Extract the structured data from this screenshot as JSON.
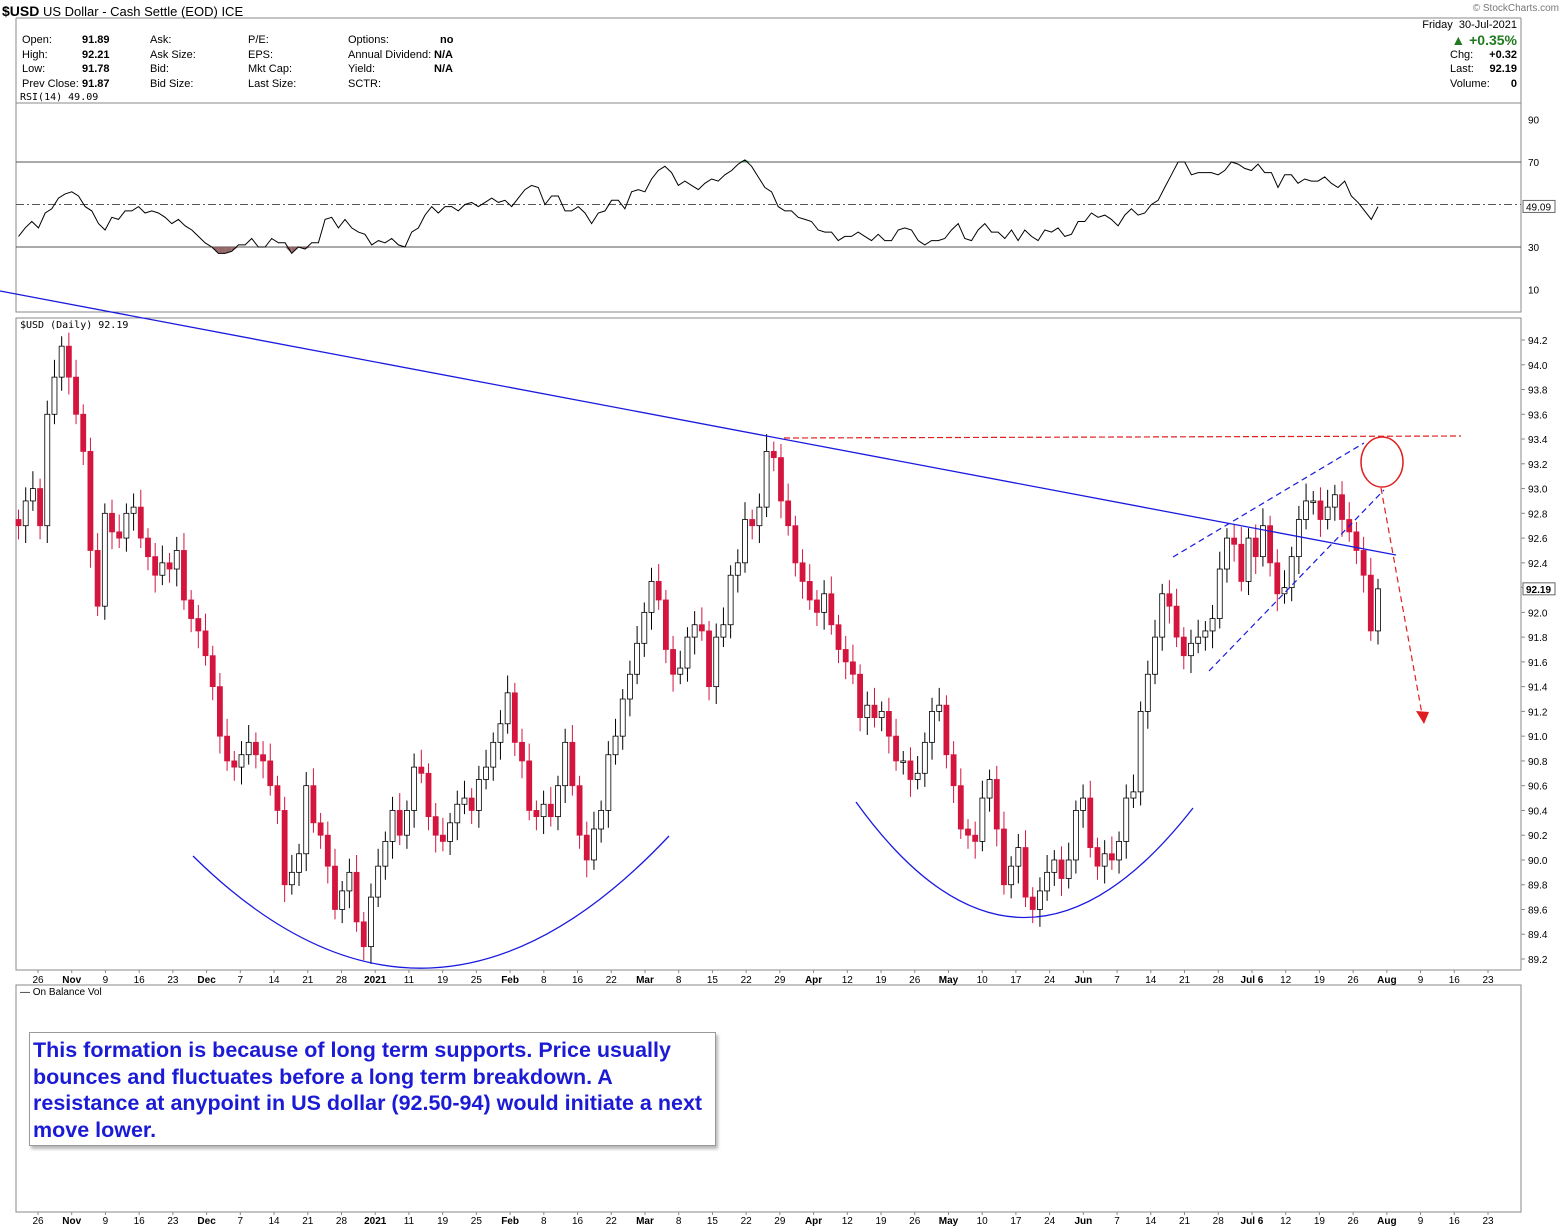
{
  "header": {
    "symbol": "$USD",
    "name": "US Dollar - Cash Settle (EOD)",
    "exchange": "ICE",
    "brand": "© StockCharts.com",
    "date_day": "Friday",
    "date": "30-Jul-2021",
    "change_pct": "▲ +0.35%"
  },
  "quote": {
    "open_label": "Open:",
    "open": "91.89",
    "high_label": "High:",
    "high": "92.21",
    "low_label": "Low:",
    "low": "91.78",
    "prev_label": "Prev Close:",
    "prev": "91.87",
    "ask_label": "Ask:",
    "asksize_label": "Ask Size:",
    "bid_label": "Bid:",
    "bidsize_label": "Bid Size:",
    "pe_label": "P/E:",
    "eps_label": "EPS:",
    "mktcap_label": "Mkt Cap:",
    "lastsize_label": "Last Size:",
    "options_label": "Options:",
    "options": "no",
    "dividend_label": "Annual Dividend:",
    "dividend": "N/A",
    "yield_label": "Yield:",
    "yield": "N/A",
    "sctr_label": "SCTR:",
    "chg_label": "Chg:",
    "chg": "+0.32",
    "last_label": "Last:",
    "last": "92.19",
    "volume_label": "Volume:",
    "volume": "0"
  },
  "colors": {
    "down": "#d4153d",
    "up": "#ffffff",
    "trend": "#1a1ae0",
    "resistance": "#e02020",
    "rsi_line": "#000000",
    "rsi_overbought_fill": "#2e8b57",
    "rsi_oversold_fill": "#8b5a5a"
  },
  "annotation": {
    "text": "This formation is because of long term supports. Price usually bounces and fluctuates before a long term breakdown. A resistance at anypoint in US dollar (92.50-94) would initiate a next move lower."
  },
  "chart_data": [
    {
      "type": "line",
      "title": "RSI(14) 49.09",
      "ylim": [
        0,
        100
      ],
      "yticks": [
        "90",
        "70",
        "30",
        "10"
      ],
      "reference_lines": [
        70,
        50,
        30
      ],
      "last_value": "49.09",
      "series": [
        {
          "values": [
            35,
            39,
            42,
            39,
            46,
            48,
            53,
            55,
            56,
            54,
            49,
            47,
            41,
            38,
            44,
            43,
            47,
            47,
            49,
            46,
            47,
            46,
            44,
            41,
            43,
            40,
            38,
            35,
            32,
            30,
            27,
            27,
            28,
            31,
            31,
            34,
            30,
            30,
            34,
            32,
            32,
            27,
            30,
            29,
            32,
            32,
            43,
            44,
            39,
            43,
            39,
            37,
            36,
            31,
            33,
            32,
            34,
            31,
            30,
            37,
            39,
            45,
            49,
            46,
            49,
            49,
            47,
            50,
            51,
            49,
            51,
            53,
            51,
            52,
            49,
            53,
            57,
            59,
            58,
            50,
            54,
            54,
            47,
            47,
            49,
            46,
            41,
            46,
            47,
            52,
            52,
            48,
            56,
            57,
            56,
            62,
            66,
            68,
            65,
            59,
            61,
            59,
            57,
            60,
            62,
            61,
            64,
            66,
            69,
            71,
            68,
            63,
            58,
            56,
            49,
            47,
            47,
            44,
            43,
            42,
            38,
            37,
            37,
            33,
            35,
            35,
            37,
            35,
            33,
            36,
            33,
            33,
            38,
            39,
            38,
            33,
            31,
            33,
            33,
            34,
            38,
            41,
            34,
            33,
            38,
            41,
            37,
            37,
            34,
            38,
            33,
            38,
            35,
            33,
            38,
            37,
            39,
            35,
            36,
            42,
            42,
            46,
            44,
            45,
            43,
            40,
            45,
            48,
            45,
            46,
            50,
            52,
            58,
            64,
            70,
            70,
            64,
            65,
            65,
            65,
            64,
            66,
            70,
            69,
            67,
            66,
            69,
            65,
            65,
            58,
            64,
            64,
            60,
            62,
            61,
            61,
            63,
            60,
            58,
            61,
            54,
            51,
            47,
            43,
            49
          ]
        }
      ]
    },
    {
      "type": "candlestick",
      "title": "$USD (Daily) 92.19",
      "ylim": [
        89.1,
        94.3
      ],
      "yticks": [
        "94.2",
        "94.0",
        "93.8",
        "93.6",
        "93.4",
        "93.2",
        "93.0",
        "92.8",
        "92.6",
        "92.4",
        "92.2",
        "92.0",
        "91.8",
        "91.6",
        "91.4",
        "91.2",
        "91.0",
        "90.8",
        "90.6",
        "90.4",
        "90.2",
        "90.0",
        "89.8",
        "89.6",
        "89.4",
        "89.2"
      ],
      "xticks": [
        "26",
        "Nov",
        "9",
        "16",
        "23",
        "Dec",
        "7",
        "14",
        "21",
        "28",
        "2021",
        "11",
        "19",
        "25",
        "Feb",
        "8",
        "16",
        "22",
        "Mar",
        "8",
        "15",
        "22",
        "29",
        "Apr",
        "12",
        "19",
        "26",
        "May",
        "10",
        "17",
        "24",
        "Jun",
        "7",
        "14",
        "21",
        "28",
        "Jul 6",
        "12",
        "19",
        "26",
        "Aug",
        "9",
        "16",
        "23"
      ],
      "last_value": "92.19",
      "close": [
        92.7,
        92.9,
        93.0,
        92.7,
        93.6,
        93.9,
        94.15,
        93.9,
        93.6,
        93.3,
        92.5,
        92.05,
        92.8,
        92.65,
        92.6,
        92.8,
        92.85,
        92.6,
        92.45,
        92.3,
        92.4,
        92.35,
        92.5,
        92.1,
        91.95,
        91.85,
        91.65,
        91.4,
        91.0,
        90.8,
        90.75,
        90.85,
        90.95,
        90.85,
        90.8,
        90.6,
        90.4,
        89.8,
        89.9,
        90.05,
        90.6,
        90.3,
        90.2,
        89.95,
        89.6,
        89.75,
        89.9,
        89.5,
        89.3,
        89.7,
        89.95,
        90.15,
        90.4,
        90.2,
        90.4,
        90.75,
        90.7,
        90.35,
        90.2,
        90.15,
        90.3,
        90.45,
        90.5,
        90.4,
        90.65,
        90.75,
        90.95,
        91.1,
        91.35,
        90.95,
        90.8,
        90.4,
        90.35,
        90.45,
        90.35,
        90.6,
        90.95,
        90.6,
        90.2,
        90.0,
        90.25,
        90.4,
        90.85,
        91.0,
        91.3,
        91.5,
        91.75,
        92.0,
        92.25,
        92.1,
        91.7,
        91.5,
        91.55,
        91.8,
        91.9,
        91.85,
        91.4,
        91.8,
        91.9,
        92.3,
        92.4,
        92.75,
        92.7,
        92.85,
        93.3,
        93.25,
        92.9,
        92.7,
        92.4,
        92.25,
        92.1,
        92.0,
        92.15,
        91.9,
        91.7,
        91.6,
        91.5,
        91.15,
        91.25,
        91.15,
        91.2,
        91.0,
        90.8,
        90.8,
        90.65,
        90.7,
        90.95,
        91.2,
        91.25,
        90.85,
        90.6,
        90.25,
        90.2,
        90.15,
        90.5,
        90.65,
        90.25,
        89.8,
        89.95,
        90.1,
        89.7,
        89.6,
        89.75,
        89.9,
        90.0,
        89.85,
        90.0,
        90.4,
        90.5,
        90.1,
        89.95,
        90.05,
        90.0,
        90.15,
        90.5,
        90.55,
        91.2,
        91.5,
        91.8,
        92.15,
        92.05,
        91.8,
        91.65,
        91.75,
        91.8,
        91.85,
        91.95,
        92.35,
        92.6,
        92.55,
        92.25,
        92.6,
        92.45,
        92.7,
        92.4,
        92.15,
        92.2,
        92.45,
        92.75,
        92.9,
        92.9,
        92.75,
        92.85,
        92.95,
        92.75,
        92.65,
        92.5,
        92.3,
        91.85,
        92.19
      ]
    }
  ]
}
